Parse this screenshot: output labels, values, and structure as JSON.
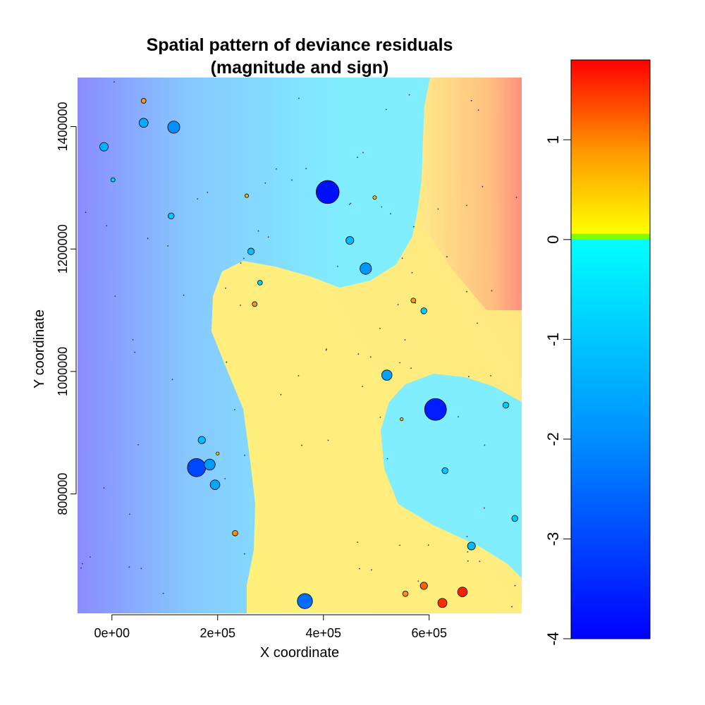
{
  "chart_data": {
    "type": "scatter",
    "title_line1": "Spatial pattern of  deviance residuals",
    "title_line2": "(magnitude and sign)",
    "xlabel": "X coordinate",
    "ylabel": "Y coordinate",
    "xlim": [
      -65000,
      775000
    ],
    "ylim": [
      605000,
      1480000
    ],
    "x_ticks": [
      {
        "value": 0,
        "label": "0e+00"
      },
      {
        "value": 200000,
        "label": "2e+05"
      },
      {
        "value": 400000,
        "label": "4e+05"
      },
      {
        "value": 600000,
        "label": "6e+05"
      }
    ],
    "y_ticks": [
      {
        "value": 800000,
        "label": "800000"
      },
      {
        "value": 1000000,
        "label": "1000000"
      },
      {
        "value": 1200000,
        "label": "1200000"
      },
      {
        "value": 1400000,
        "label": "1400000"
      }
    ],
    "colorbar": {
      "range": [
        -4,
        1.8
      ],
      "ticks": [
        {
          "value": 1,
          "label": "1"
        },
        {
          "value": 0,
          "label": "0"
        },
        {
          "value": -1,
          "label": "-1"
        },
        {
          "value": -2,
          "label": "-2"
        },
        {
          "value": -3,
          "label": "-3"
        },
        {
          "value": -4,
          "label": "-4"
        }
      ],
      "colors": {
        "max": "#ff0000",
        "mid_positive": "#ff8000",
        "zero_positive": "#ffff00",
        "zero": "#80ff00",
        "zero_negative": "#00ffff",
        "mid_negative": "#0090ff",
        "min": "#0000ff"
      }
    },
    "background_colors": {
      "positive_region": "#fff37c",
      "negative_region": "#80eeff",
      "far_negative": "#8080ff",
      "far_positive": "#ff8080"
    },
    "points": [
      {
        "x": 408000,
        "y": 1293000,
        "r": -3.8
      },
      {
        "x": 612000,
        "y": 938000,
        "r": -3.6
      },
      {
        "x": 160000,
        "y": 843000,
        "r": -3.0
      },
      {
        "x": 365000,
        "y": 625000,
        "r": -2.5
      },
      {
        "x": 117000,
        "y": 1399000,
        "r": -2.0
      },
      {
        "x": 480000,
        "y": 1168000,
        "r": -1.9
      },
      {
        "x": 185000,
        "y": 848000,
        "r": -1.8
      },
      {
        "x": 520000,
        "y": 994000,
        "r": -1.7
      },
      {
        "x": 195000,
        "y": 815000,
        "r": -1.6
      },
      {
        "x": 60000,
        "y": 1406000,
        "r": -1.5
      },
      {
        "x": -15000,
        "y": 1367000,
        "r": -1.4
      },
      {
        "x": 450000,
        "y": 1214000,
        "r": -1.3
      },
      {
        "x": 680000,
        "y": 715000,
        "r": -1.3
      },
      {
        "x": 170000,
        "y": 888000,
        "r": -1.2
      },
      {
        "x": 263000,
        "y": 1196000,
        "r": -1.1
      },
      {
        "x": 112000,
        "y": 1254000,
        "r": -1.0
      },
      {
        "x": 590000,
        "y": 1099000,
        "r": -1.0
      },
      {
        "x": 630000,
        "y": 838000,
        "r": -1.0
      },
      {
        "x": 762000,
        "y": 760000,
        "r": -1.0
      },
      {
        "x": 745000,
        "y": 945000,
        "r": -1.0
      },
      {
        "x": 280000,
        "y": 1145000,
        "r": -0.8
      },
      {
        "x": 2000,
        "y": 1313000,
        "r": -0.7
      },
      {
        "x": 663000,
        "y": 640000,
        "r": 1.6
      },
      {
        "x": 625000,
        "y": 622000,
        "r": 1.5
      },
      {
        "x": 590000,
        "y": 650000,
        "r": 1.2
      },
      {
        "x": 555000,
        "y": 637000,
        "r": 0.9
      },
      {
        "x": 233000,
        "y": 736000,
        "r": 0.9
      },
      {
        "x": 270000,
        "y": 1110000,
        "r": 0.8
      },
      {
        "x": 60000,
        "y": 1442000,
        "r": 0.8
      },
      {
        "x": 570000,
        "y": 1116000,
        "r": 0.8
      },
      {
        "x": 255000,
        "y": 1287000,
        "r": 0.6
      },
      {
        "x": 497000,
        "y": 1284000,
        "r": 0.6
      },
      {
        "x": 548000,
        "y": 922000,
        "r": 0.5
      },
      {
        "x": 200000,
        "y": 866000,
        "r": 0.5
      }
    ]
  }
}
